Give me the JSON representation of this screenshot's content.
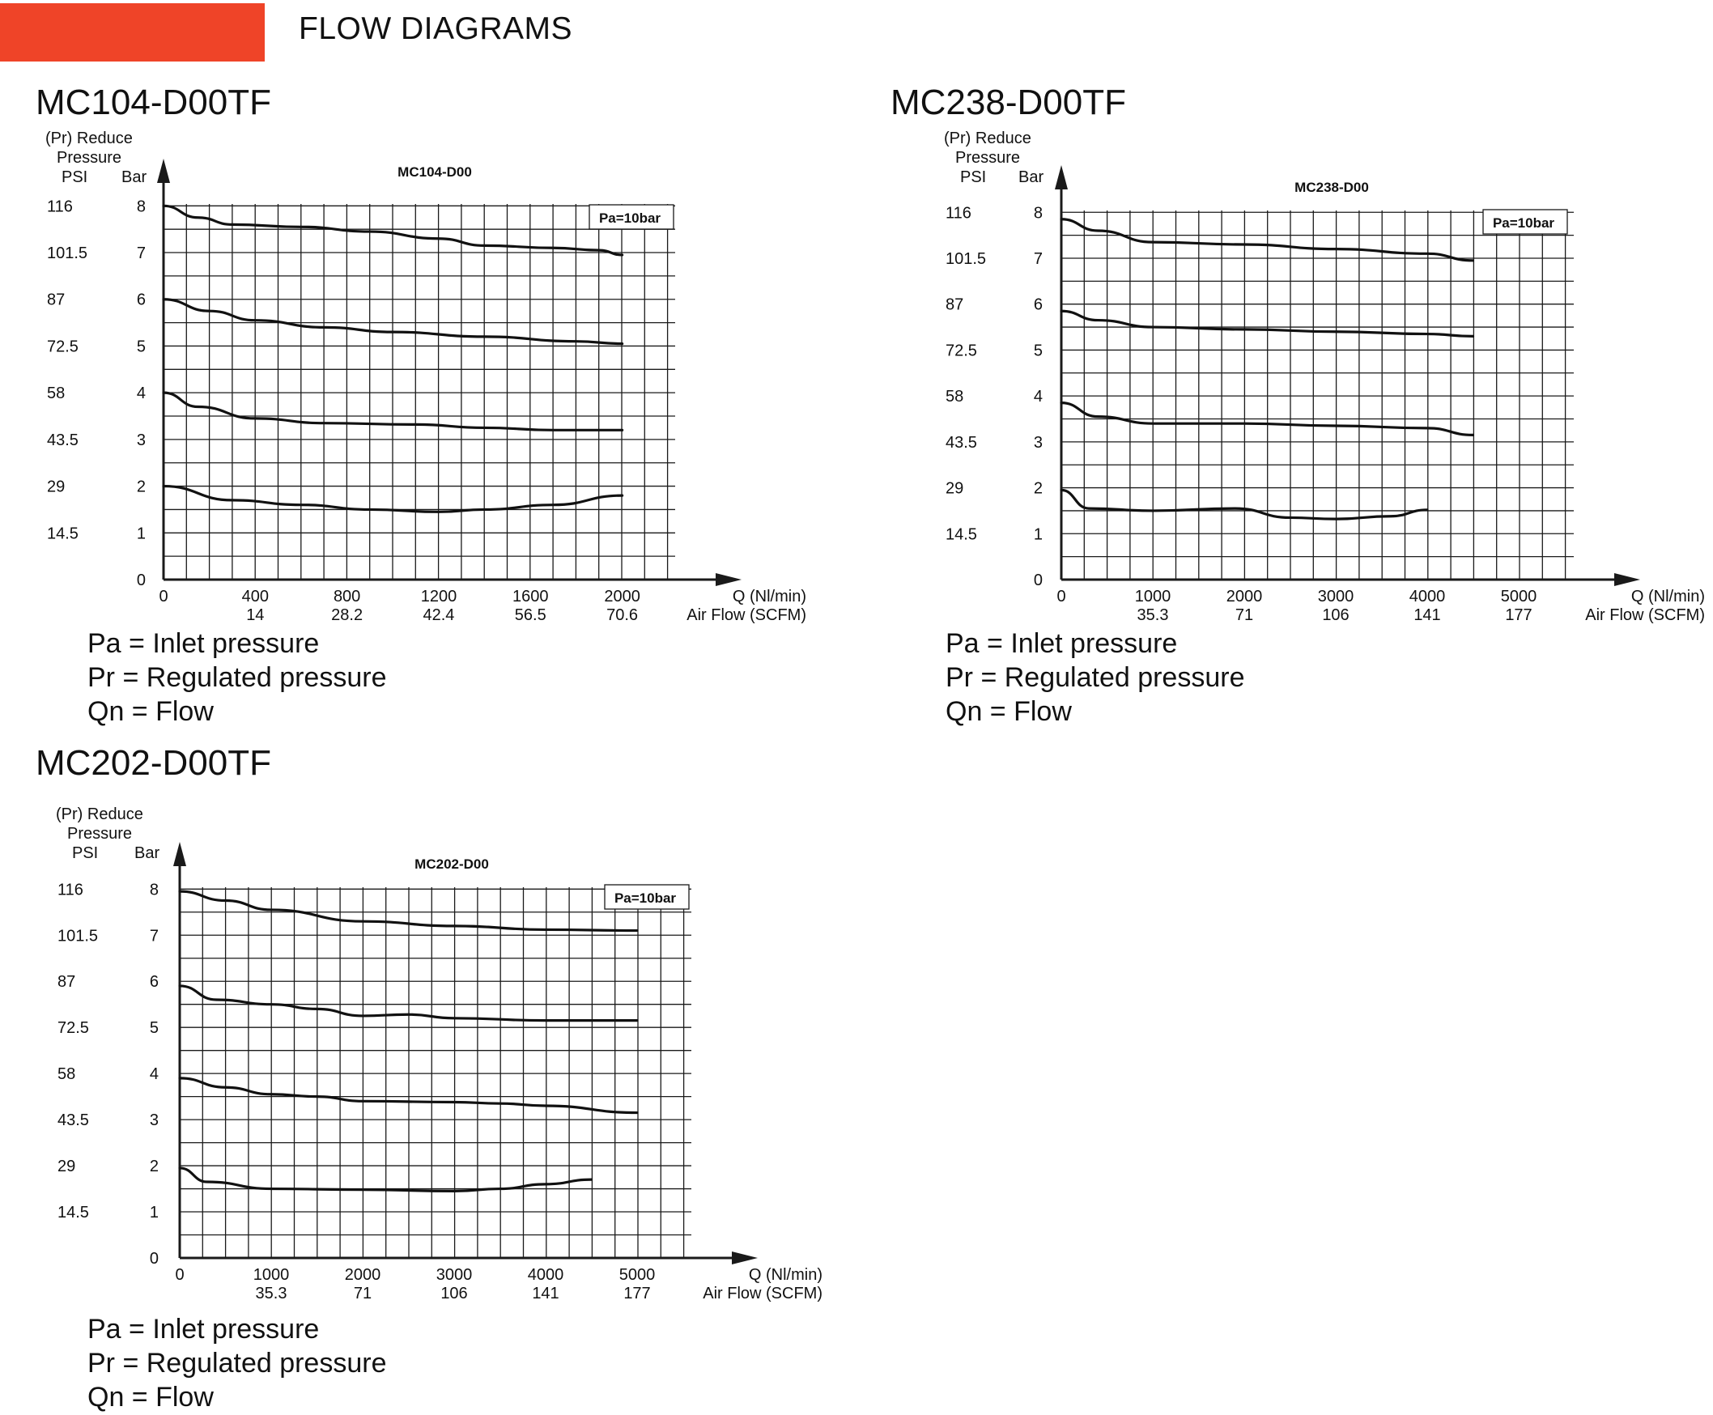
{
  "header": {
    "title": "FLOW DIAGRAMS",
    "accent_color": "#ef4428"
  },
  "colors": {
    "grid": "#1a1a1a",
    "curve": "#111111",
    "text": "#111111"
  },
  "charts": [
    {
      "title": "MC104-D00TF",
      "legend": [
        "Pa = Inlet pressure",
        "Pr = Regulated pressure",
        "Qn = Flow"
      ]
    },
    {
      "title": "MC238-D00TF",
      "legend": [
        "Pa = Inlet pressure",
        "Pr = Regulated pressure",
        "Qn = Flow"
      ]
    },
    {
      "title": "MC202-D00TF",
      "legend": [
        "Pa = Inlet pressure",
        "Pr = Regulated pressure",
        "Qn = Flow"
      ]
    }
  ],
  "chart_data": [
    {
      "type": "line",
      "title": "MC104-D00",
      "ylabel_lines": [
        "(Pr) Reduce",
        "Pressure"
      ],
      "y_unit_psi": "PSI",
      "y_unit_bar": "Bar",
      "y_ticks_bar": [
        "0",
        "1",
        "2",
        "3",
        "4",
        "5",
        "6",
        "7",
        "8"
      ],
      "y_ticks_psi": [
        "",
        "14.5",
        "29",
        "43.5",
        "58",
        "72.5",
        "87",
        "101.5",
        "116"
      ],
      "xlabel": "Q (Nl/min)",
      "xlabel2": "Air Flow (SCFM)",
      "x_ticks": [
        "0",
        "400",
        "800",
        "1200",
        "1600",
        "2000"
      ],
      "x_ticks2": [
        "",
        "14",
        "28.2",
        "42.4",
        "56.5",
        "70.6"
      ],
      "xlim": [
        0,
        2200
      ],
      "ylim": [
        0,
        8
      ],
      "annotation": "Pa=10bar",
      "grid": true,
      "series": [
        {
          "x": [
            0,
            150,
            300,
            600,
            900,
            1200,
            1400,
            1700,
            1900,
            2000
          ],
          "y": [
            8.0,
            7.75,
            7.6,
            7.55,
            7.45,
            7.3,
            7.15,
            7.1,
            7.05,
            6.95
          ]
        },
        {
          "x": [
            0,
            200,
            400,
            700,
            1000,
            1400,
            1800,
            2000
          ],
          "y": [
            6.0,
            5.75,
            5.55,
            5.4,
            5.3,
            5.2,
            5.1,
            5.05
          ]
        },
        {
          "x": [
            0,
            150,
            400,
            700,
            1100,
            1400,
            1700,
            2000
          ],
          "y": [
            4.0,
            3.7,
            3.45,
            3.35,
            3.32,
            3.25,
            3.2,
            3.2
          ]
        },
        {
          "x": [
            0,
            300,
            600,
            900,
            1200,
            1400,
            1700,
            2000
          ],
          "y": [
            2.0,
            1.7,
            1.6,
            1.5,
            1.45,
            1.5,
            1.6,
            1.8
          ]
        }
      ]
    },
    {
      "type": "line",
      "title": "MC238-D00",
      "ylabel_lines": [
        "(Pr) Reduce",
        "Pressure"
      ],
      "y_unit_psi": "PSI",
      "y_unit_bar": "Bar",
      "y_ticks_bar": [
        "0",
        "1",
        "2",
        "3",
        "4",
        "5",
        "6",
        "7",
        "8"
      ],
      "y_ticks_psi": [
        "",
        "14.5",
        "29",
        "43.5",
        "58",
        "72.5",
        "87",
        "101.5",
        "116"
      ],
      "xlabel": "Q (Nl/min)",
      "xlabel2": "Air Flow (SCFM)",
      "x_ticks": [
        "0",
        "1000",
        "2000",
        "3000",
        "4000",
        "5000"
      ],
      "x_ticks2": [
        "",
        "35.3",
        "71",
        "106",
        "141",
        "177"
      ],
      "xlim": [
        0,
        5500
      ],
      "ylim": [
        0,
        8
      ],
      "annotation": "Pa=10bar",
      "grid": true,
      "series": [
        {
          "x": [
            0,
            400,
            1000,
            2000,
            3000,
            4000,
            4500
          ],
          "y": [
            7.85,
            7.6,
            7.35,
            7.3,
            7.2,
            7.1,
            6.95
          ]
        },
        {
          "x": [
            0,
            400,
            1000,
            2000,
            3000,
            4000,
            4500
          ],
          "y": [
            5.85,
            5.65,
            5.5,
            5.45,
            5.4,
            5.35,
            5.3
          ]
        },
        {
          "x": [
            0,
            400,
            1000,
            2000,
            3000,
            4000,
            4500
          ],
          "y": [
            3.85,
            3.55,
            3.4,
            3.4,
            3.35,
            3.3,
            3.15
          ]
        },
        {
          "x": [
            0,
            300,
            1000,
            1900,
            2500,
            3000,
            3600,
            4000
          ],
          "y": [
            1.95,
            1.55,
            1.5,
            1.55,
            1.35,
            1.32,
            1.38,
            1.52
          ]
        }
      ]
    },
    {
      "type": "line",
      "title": "MC202-D00",
      "ylabel_lines": [
        "(Pr) Reduce",
        "Pressure"
      ],
      "y_unit_psi": "PSI",
      "y_unit_bar": "Bar",
      "y_ticks_bar": [
        "0",
        "1",
        "2",
        "3",
        "4",
        "5",
        "6",
        "7",
        "8"
      ],
      "y_ticks_psi": [
        "",
        "14.5",
        "29",
        "43.5",
        "58",
        "72.5",
        "87",
        "101.5",
        "116"
      ],
      "xlabel": "Q (Nl/min)",
      "xlabel2": "Air Flow (SCFM)",
      "x_ticks": [
        "0",
        "1000",
        "2000",
        "3000",
        "4000",
        "5000"
      ],
      "x_ticks2": [
        "",
        "35.3",
        "71",
        "106",
        "141",
        "177"
      ],
      "xlim": [
        0,
        5500
      ],
      "ylim": [
        0,
        8
      ],
      "annotation": "Pa=10bar",
      "grid": true,
      "series": [
        {
          "x": [
            0,
            500,
            1000,
            2000,
            3000,
            4000,
            5000
          ],
          "y": [
            7.95,
            7.75,
            7.55,
            7.3,
            7.2,
            7.12,
            7.1
          ]
        },
        {
          "x": [
            0,
            400,
            1000,
            1500,
            2000,
            2500,
            3000,
            4000,
            5000
          ],
          "y": [
            5.9,
            5.6,
            5.5,
            5.4,
            5.25,
            5.28,
            5.2,
            5.15,
            5.15
          ]
        },
        {
          "x": [
            0,
            500,
            1000,
            1500,
            2000,
            3000,
            3500,
            4000,
            5000
          ],
          "y": [
            3.9,
            3.7,
            3.55,
            3.5,
            3.4,
            3.38,
            3.35,
            3.3,
            3.15
          ]
        },
        {
          "x": [
            0,
            300,
            1000,
            2000,
            3000,
            3500,
            4000,
            4500
          ],
          "y": [
            1.95,
            1.65,
            1.5,
            1.48,
            1.45,
            1.5,
            1.6,
            1.7
          ]
        }
      ]
    }
  ]
}
